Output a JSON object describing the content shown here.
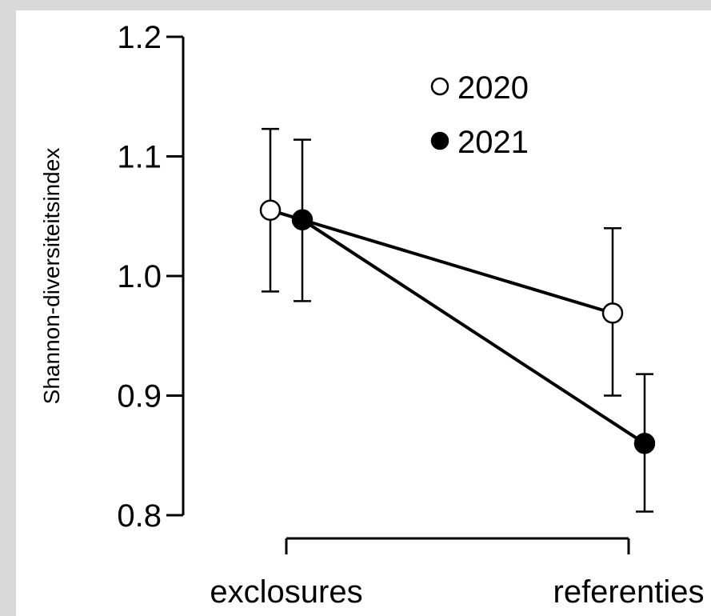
{
  "chart_data": {
    "type": "line",
    "title": "",
    "xlabel": "",
    "ylabel": "Shannon-diversiteitsindex",
    "categories": [
      "exclosures",
      "referenties"
    ],
    "ylim": [
      0.8,
      1.2
    ],
    "yticks": [
      "0.8",
      "0.9",
      "1.0",
      "1.1",
      "1.2"
    ],
    "grid": false,
    "legend_position": "top-right",
    "series": [
      {
        "name": "2020",
        "marker": "open-circle",
        "color": "#ffffff",
        "values": [
          1.055,
          0.969
        ],
        "error_low": [
          0.987,
          0.9
        ],
        "error_high": [
          1.123,
          1.04
        ]
      },
      {
        "name": "2021",
        "marker": "filled-circle",
        "color": "#000000",
        "values": [
          1.047,
          0.86
        ],
        "error_low": [
          0.979,
          0.803
        ],
        "error_high": [
          1.114,
          0.918
        ]
      }
    ]
  }
}
